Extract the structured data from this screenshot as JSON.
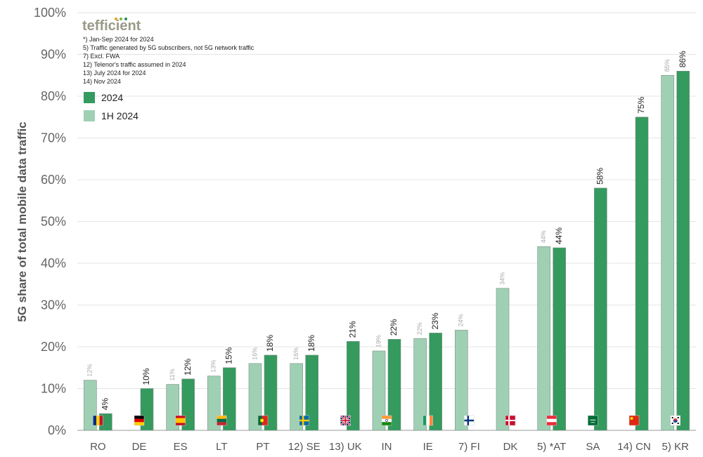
{
  "chart_data": {
    "type": "bar",
    "ylabel": "5G share of total mobile data traffic",
    "ylim": [
      0,
      100
    ],
    "yticks": [
      "0%",
      "10%",
      "20%",
      "30%",
      "40%",
      "50%",
      "60%",
      "70%",
      "80%",
      "90%",
      "100%"
    ],
    "categories": [
      "RO",
      "DE",
      "ES",
      "LT",
      "PT",
      "12) SE",
      "13) UK",
      "IN",
      "IE",
      "7) FI",
      "DK",
      "5) *AT",
      "SA",
      "14) CN",
      "5) KR"
    ],
    "series": [
      {
        "name": "1H 2024",
        "color": "#9fd0b4",
        "values": [
          12,
          null,
          11,
          13,
          16,
          16,
          null,
          19,
          22,
          24,
          34,
          44,
          null,
          null,
          85
        ],
        "labels": [
          "12%",
          "",
          "11%",
          "13%",
          "16%",
          "16%",
          "",
          "19%",
          "22%",
          "24%",
          "34%",
          "44%",
          "",
          "",
          "85%"
        ]
      },
      {
        "name": "2024",
        "color": "#349a5e",
        "values": [
          4,
          10,
          12.3,
          15,
          18,
          18,
          21.3,
          21.8,
          23.3,
          null,
          null,
          43.7,
          58,
          75,
          86
        ],
        "labels": [
          "4%",
          "10%",
          "12%",
          "15%",
          "18%",
          "18%",
          "21%",
          "22%",
          "23%",
          "",
          "",
          "44%",
          "58%",
          "75%",
          "86%"
        ]
      }
    ],
    "flags": [
      "RO",
      "DE",
      "ES",
      "LT",
      "PT",
      "SE",
      "UK",
      "IN",
      "IE",
      "FI",
      "DK",
      "AT",
      "SA",
      "CN",
      "KR"
    ],
    "legend": {
      "position": "top-left",
      "entries": [
        "2024",
        "1H 2024"
      ]
    },
    "notes": [
      "*) Jan-Sep 2024 for 2024",
      "5) Traffic generated by 5G subscribers, not 5G network traffic",
      "7) Excl. FWA",
      "12) Telenor's traffic assumed in 2024",
      "13) July 2024 for 2024",
      "14) Nov 2024"
    ],
    "grid": true,
    "logo": "tefficient"
  }
}
